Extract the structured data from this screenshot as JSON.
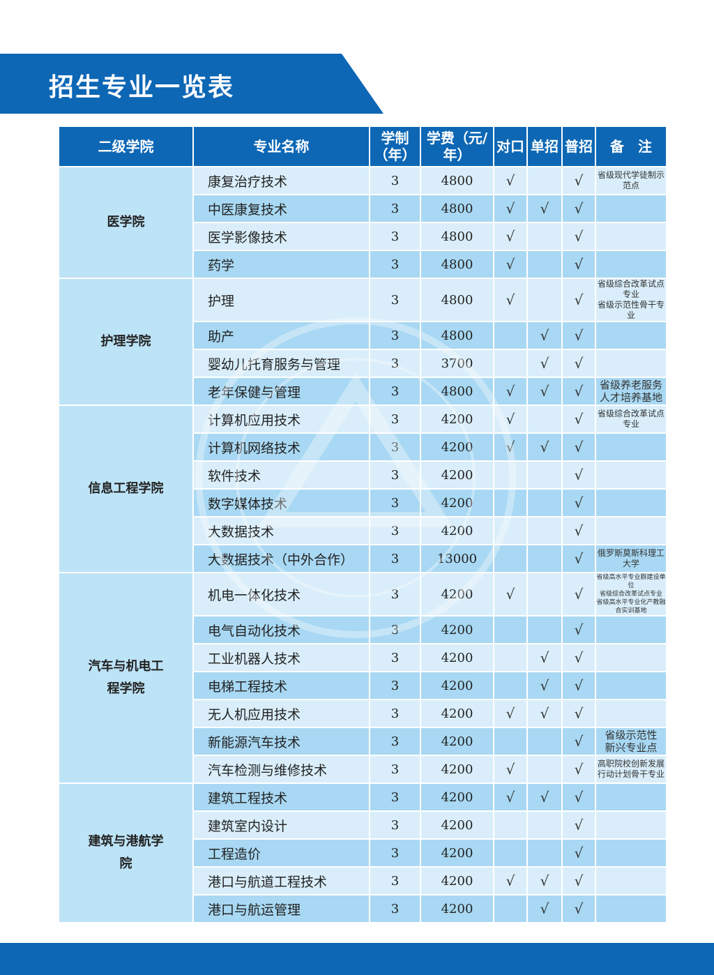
{
  "title": "招生专业一览表",
  "headers": {
    "college": "二级学院",
    "major": "专业名称",
    "years": "学制（年）",
    "fee": "学费（元/年）",
    "duikou": "对口",
    "danzhao": "单招",
    "puzhao": "普招",
    "notes": "备　注"
  },
  "check": "√",
  "colleges": [
    {
      "name": "医学院",
      "rows": [
        {
          "major": "康复治疗技术",
          "years": "3",
          "fee": "4800",
          "duikou": true,
          "danzhao": false,
          "puzhao": true,
          "notes": [
            "省级现代学徒制示范点"
          ]
        },
        {
          "major": "中医康复技术",
          "years": "3",
          "fee": "4800",
          "duikou": true,
          "danzhao": true,
          "puzhao": true,
          "notes": []
        },
        {
          "major": "医学影像技术",
          "years": "3",
          "fee": "4800",
          "duikou": true,
          "danzhao": false,
          "puzhao": true,
          "notes": []
        },
        {
          "major": "药学",
          "years": "3",
          "fee": "4800",
          "duikou": true,
          "danzhao": false,
          "puzhao": true,
          "notes": []
        }
      ]
    },
    {
      "name": "护理学院",
      "rows": [
        {
          "major": "护理",
          "years": "3",
          "fee": "4800",
          "duikou": true,
          "danzhao": false,
          "puzhao": true,
          "notes": [
            "省级综合改革试点专业",
            "省级示范性骨干专业"
          ]
        },
        {
          "major": "助产",
          "years": "3",
          "fee": "4800",
          "duikou": false,
          "danzhao": true,
          "puzhao": true,
          "notes": []
        },
        {
          "major": "婴幼儿托育服务与管理",
          "years": "3",
          "fee": "3700",
          "duikou": false,
          "danzhao": true,
          "puzhao": true,
          "notes": []
        },
        {
          "major": "老年保健与管理",
          "years": "3",
          "fee": "4800",
          "duikou": true,
          "danzhao": true,
          "puzhao": true,
          "notes": [
            "省级养老服务",
            "人才培养基地"
          ]
        }
      ]
    },
    {
      "name": "信息工程学院",
      "rows": [
        {
          "major": "计算机应用技术",
          "years": "3",
          "fee": "4200",
          "duikou": true,
          "danzhao": false,
          "puzhao": true,
          "notes": [
            "省级综合改革试点专业"
          ]
        },
        {
          "major": "计算机网络技术",
          "years": "3",
          "fee": "4200",
          "duikou": true,
          "danzhao": true,
          "puzhao": true,
          "notes": []
        },
        {
          "major": "软件技术",
          "years": "3",
          "fee": "4200",
          "duikou": false,
          "danzhao": false,
          "puzhao": true,
          "notes": []
        },
        {
          "major": "数字媒体技术",
          "years": "3",
          "fee": "4200",
          "duikou": false,
          "danzhao": false,
          "puzhao": true,
          "notes": []
        },
        {
          "major": "大数据技术",
          "years": "3",
          "fee": "4200",
          "duikou": false,
          "danzhao": false,
          "puzhao": true,
          "notes": []
        },
        {
          "major": "大数据技术（中外合作）",
          "years": "3",
          "fee": "13000",
          "duikou": false,
          "danzhao": false,
          "puzhao": true,
          "notes": [
            "俄罗斯莫斯科理工大学"
          ]
        }
      ]
    },
    {
      "name": "汽车与机电工程学院",
      "rows": [
        {
          "major": "机电一体化技术",
          "years": "3",
          "fee": "4200",
          "duikou": true,
          "danzhao": false,
          "puzhao": true,
          "notes": [
            "省级高水平专业群建设单位",
            "省级综合改革试点专业",
            "省级高水平专业化产教融合实训基地"
          ]
        },
        {
          "major": "电气自动化技术",
          "years": "3",
          "fee": "4200",
          "duikou": false,
          "danzhao": false,
          "puzhao": true,
          "notes": []
        },
        {
          "major": "工业机器人技术",
          "years": "3",
          "fee": "4200",
          "duikou": false,
          "danzhao": true,
          "puzhao": true,
          "notes": []
        },
        {
          "major": "电梯工程技术",
          "years": "3",
          "fee": "4200",
          "duikou": false,
          "danzhao": true,
          "puzhao": true,
          "notes": []
        },
        {
          "major": "无人机应用技术",
          "years": "3",
          "fee": "4200",
          "duikou": true,
          "danzhao": true,
          "puzhao": true,
          "notes": []
        },
        {
          "major": "新能源汽车技术",
          "years": "3",
          "fee": "4200",
          "duikou": false,
          "danzhao": false,
          "puzhao": true,
          "notes": [
            "省级示范性",
            "新兴专业点"
          ]
        },
        {
          "major": "汽车检测与维修技术",
          "years": "3",
          "fee": "4200",
          "duikou": true,
          "danzhao": false,
          "puzhao": true,
          "notes": [
            "高职院校创新发展",
            "行动计划骨干专业"
          ]
        }
      ]
    },
    {
      "name": "建筑与港航学院",
      "rows": [
        {
          "major": "建筑工程技术",
          "years": "3",
          "fee": "4200",
          "duikou": true,
          "danzhao": true,
          "puzhao": true,
          "notes": []
        },
        {
          "major": "建筑室内设计",
          "years": "3",
          "fee": "4200",
          "duikou": false,
          "danzhao": false,
          "puzhao": true,
          "notes": []
        },
        {
          "major": "工程造价",
          "years": "3",
          "fee": "4200",
          "duikou": false,
          "danzhao": false,
          "puzhao": true,
          "notes": []
        },
        {
          "major": "港口与航道工程技术",
          "years": "3",
          "fee": "4200",
          "duikou": true,
          "danzhao": true,
          "puzhao": true,
          "notes": []
        },
        {
          "major": "港口与航运管理",
          "years": "3",
          "fee": "4200",
          "duikou": false,
          "danzhao": true,
          "puzhao": true,
          "notes": []
        }
      ]
    }
  ]
}
